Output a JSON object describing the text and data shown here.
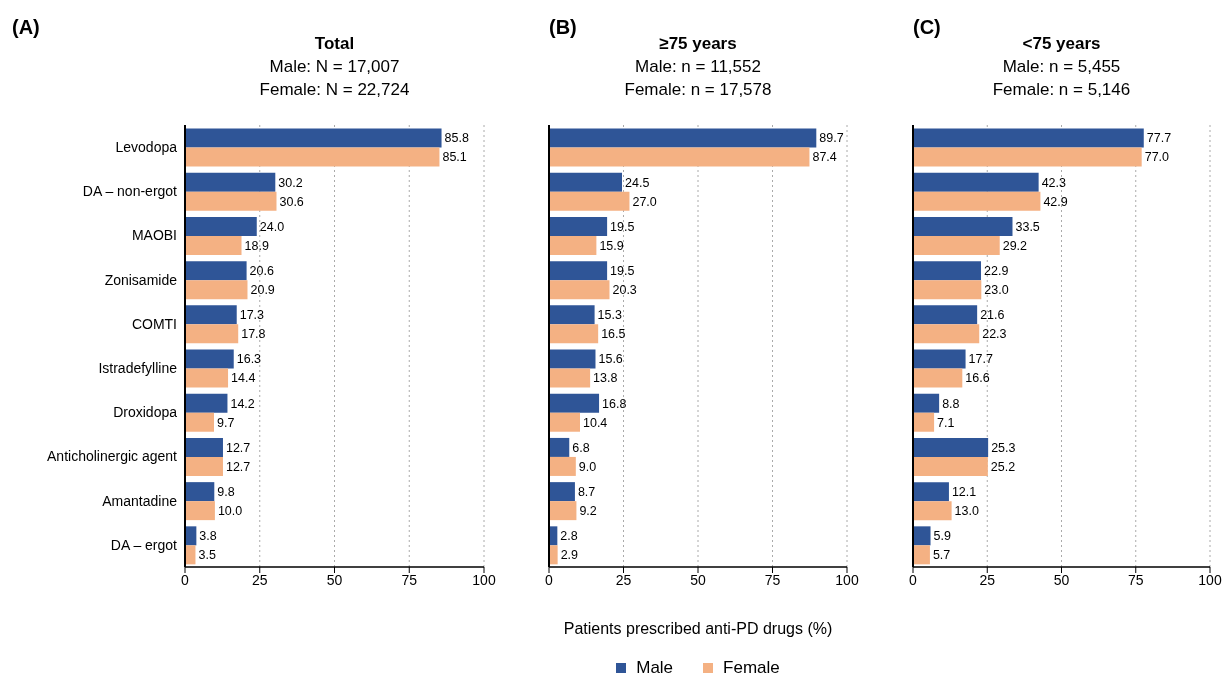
{
  "chart_data": [
    {
      "type": "bar",
      "orientation": "horizontal",
      "title": "Total",
      "subtitle": "Male: N = 17,007\nFemale: N = 22,724",
      "annotations": [
        "(A)"
      ],
      "categories": [
        "Levodopa",
        "DA – non-ergot",
        "MAOBI",
        "Zonisamide",
        "COMTI",
        "Istradefylline",
        "Droxidopa",
        "Anticholinergic agent",
        "Amantadine",
        "DA – ergot"
      ],
      "series": [
        {
          "color": "#2f5597",
          "values": [
            85.8,
            30.2,
            24.0,
            20.6,
            17.3,
            16.3,
            14.2,
            12.7,
            9.8,
            3.8
          ],
          "value_labels": [
            "85.8",
            "30.2",
            "24.0",
            "20.6",
            "17.3",
            "16.3",
            "14.2",
            "12.7",
            "9.8",
            "3.8"
          ]
        },
        {
          "color": "#f4b183",
          "values": [
            85.1,
            30.6,
            18.9,
            20.9,
            17.8,
            14.4,
            9.7,
            12.7,
            10.0,
            3.5
          ],
          "value_labels": [
            "85.1",
            "30.6",
            "18.9",
            "20.9",
            "17.8",
            "14.4",
            "9.7",
            "12.7",
            "10.0",
            "3.5"
          ]
        }
      ],
      "xlim": [
        0,
        100
      ],
      "xticks": [
        0,
        25,
        50,
        75,
        100
      ],
      "grid": "x"
    },
    {
      "type": "bar",
      "orientation": "horizontal",
      "title": "≥75 years",
      "subtitle": "Male: n = 11,552\nFemale: n = 17,578",
      "annotations": [
        "(B)"
      ],
      "xlabel": "Patients prescribed anti-PD drugs (%)",
      "legend": "bottom",
      "categories": [
        null,
        null,
        null,
        null,
        null,
        null,
        null,
        null,
        null,
        null
      ],
      "series": [
        {
          "name": "Male",
          "color": "#2f5597",
          "values": [
            89.7,
            24.5,
            19.5,
            19.5,
            15.3,
            15.6,
            16.8,
            6.8,
            8.7,
            2.8
          ],
          "value_labels": [
            "89.7",
            "24.5",
            "19.5",
            "19.5",
            "15.3",
            "15.6",
            "16.8",
            "6.8",
            "8.7",
            "2.8"
          ]
        },
        {
          "name": "Female",
          "color": "#f4b183",
          "values": [
            87.4,
            27.0,
            15.9,
            20.3,
            16.5,
            13.8,
            10.4,
            9.0,
            9.2,
            2.9
          ],
          "value_labels": [
            "87.4",
            "27.0",
            "15.9",
            "20.3",
            "16.5",
            "13.8",
            "10.4",
            "9.0",
            "9.2",
            "2.9"
          ]
        }
      ],
      "xlim": [
        0,
        100
      ],
      "xticks": [
        0,
        25,
        50,
        75,
        100
      ],
      "grid": "x",
      "tick_labels": "x"
    },
    {
      "type": "bar",
      "orientation": "horizontal",
      "title": "<75 years",
      "subtitle": "Male: n = 5,455\nFemale: n = 5,146",
      "annotations": [
        "(C)"
      ],
      "categories": [
        null,
        null,
        null,
        null,
        null,
        null,
        null,
        null,
        null,
        null
      ],
      "series": [
        {
          "color": "#2f5597",
          "values": [
            77.7,
            42.3,
            33.5,
            22.9,
            21.6,
            17.7,
            8.8,
            25.3,
            12.1,
            5.9
          ],
          "value_labels": [
            "77.7",
            "42.3",
            "33.5",
            "22.9",
            "21.6",
            "17.7",
            "8.8",
            "25.3",
            "12.1",
            "5.9"
          ]
        },
        {
          "color": "#f4b183",
          "values": [
            77.0,
            42.9,
            29.2,
            23.0,
            22.3,
            16.6,
            7.1,
            25.2,
            13.0,
            5.7
          ],
          "value_labels": [
            "77.0",
            "42.9",
            "29.2",
            "23.0",
            "22.3",
            "16.6",
            "7.1",
            "25.2",
            "13.0",
            "5.7"
          ]
        }
      ],
      "xlim": [
        0,
        100
      ],
      "xticks": [
        0,
        25,
        50,
        75,
        100
      ],
      "grid": "x",
      "tick_labels": "x"
    }
  ]
}
